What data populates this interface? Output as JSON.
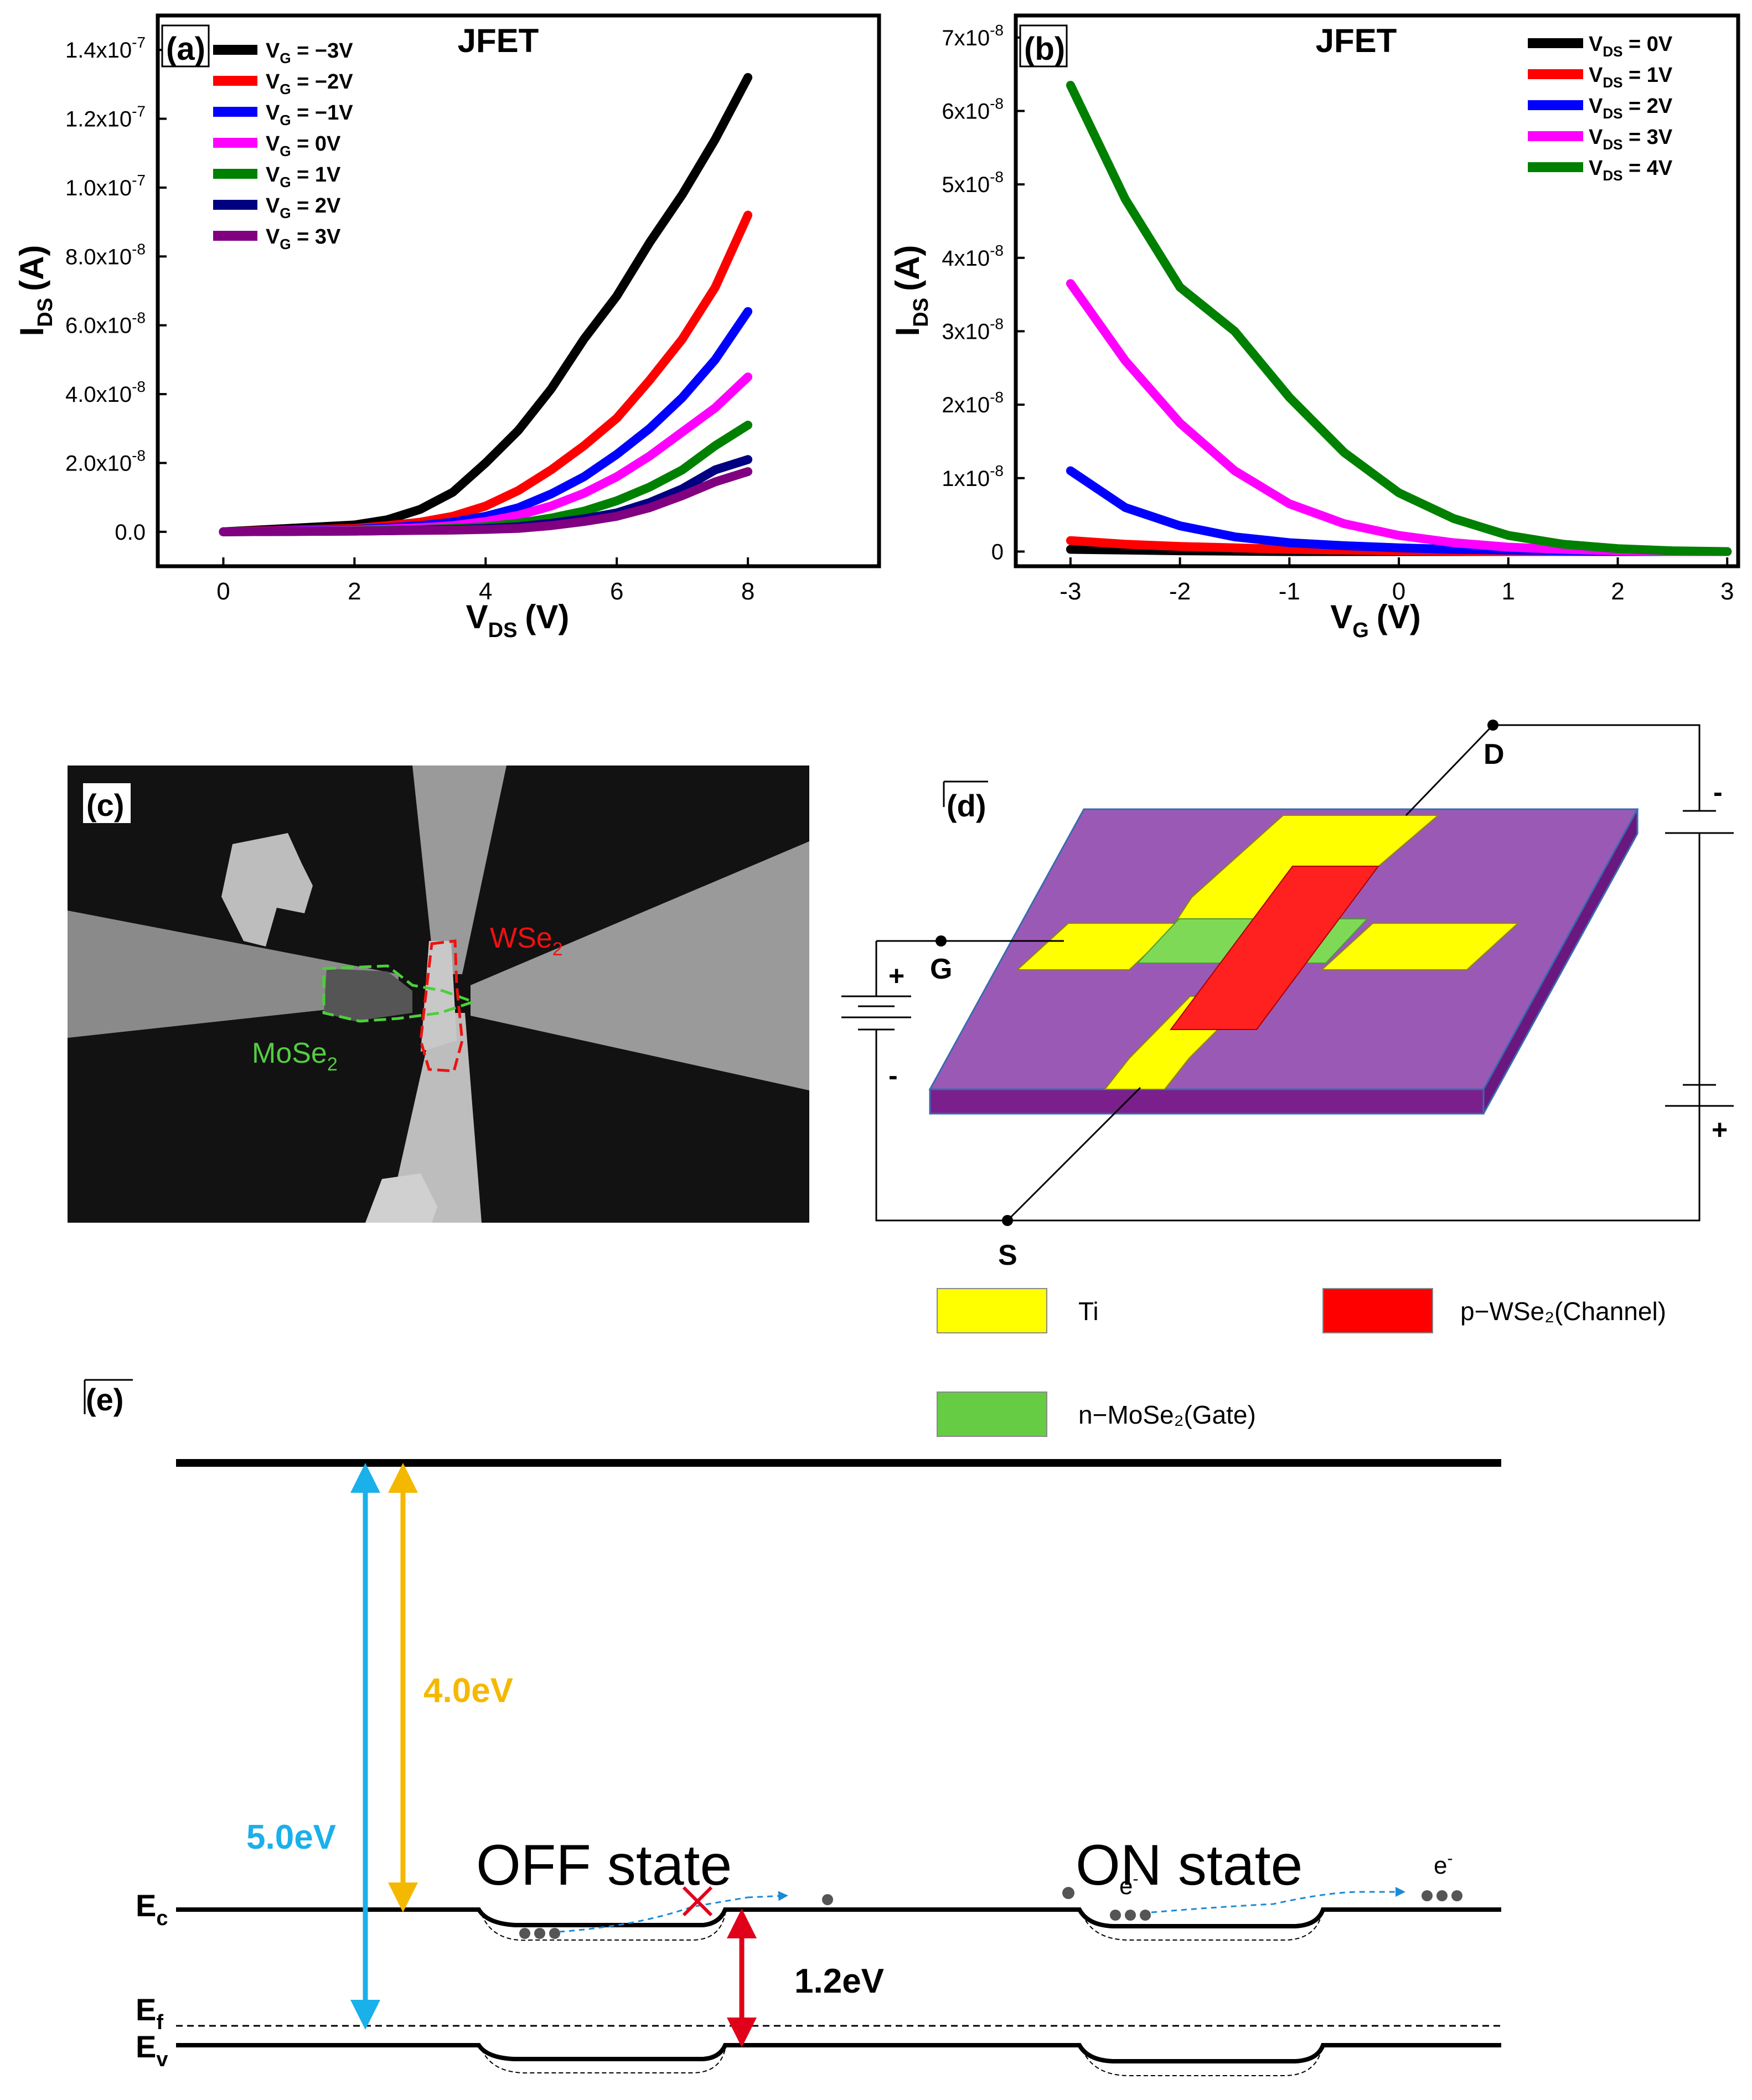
{
  "chart_data": [
    {
      "panel": "(a)",
      "type": "line",
      "title": "JFET",
      "xlabel_main": "V",
      "xlabel_sub": "DS",
      "xlabel_unit": "(V)",
      "ylabel_main": "I",
      "ylabel_sub": "DS",
      "ylabel_unit": "(A)",
      "xlim": [
        -1,
        10
      ],
      "ylim": [
        -1e-08,
        1.5e-07
      ],
      "x_ticks": [
        0,
        2,
        4,
        6,
        8
      ],
      "x_tick_labels": [
        "0",
        "2",
        "4",
        "6",
        "8"
      ],
      "y_ticks": [
        0,
        2e-08,
        4e-08,
        6e-08,
        8e-08,
        1e-07,
        1.2e-07,
        1.4e-07
      ],
      "y_tick_labels": [
        "0.0",
        "2.0x10",
        "4.0x10",
        "6.0x10",
        "8.0x10",
        "1.0x10",
        "1.2x10",
        "1.4x10"
      ],
      "y_tick_exps": [
        "",
        "-8",
        "-8",
        "-8",
        "-8",
        "-7",
        "-7",
        "-7"
      ],
      "legend_position": "top-left",
      "x": [
        0,
        1,
        2,
        2.5,
        3,
        3.5,
        4,
        4.5,
        5,
        5.5,
        6,
        6.5,
        7,
        7.5,
        8
      ],
      "series": [
        {
          "name_prefix": "V",
          "name_sub": "G",
          "name_value": " = −3V",
          "color": "#000000",
          "values": [
            0,
            1e-09,
            2e-09,
            3.5e-09,
            6.5e-09,
            1.15e-08,
            2e-08,
            2.95e-08,
            4.15e-08,
            5.6e-08,
            6.85e-08,
            8.4e-08,
            9.8e-08,
            1.14e-07,
            1.32e-07
          ]
        },
        {
          "name_prefix": "V",
          "name_sub": "G",
          "name_value": " = −2V",
          "color": "#ff0000",
          "values": [
            0,
            5e-10,
            1e-09,
            1.8e-09,
            2.8e-09,
            4.5e-09,
            7.5e-09,
            1.2e-08,
            1.8e-08,
            2.5e-08,
            3.3e-08,
            4.4e-08,
            5.6e-08,
            7.1e-08,
            9.2e-08
          ]
        },
        {
          "name_prefix": "V",
          "name_sub": "G",
          "name_value": " = −1V",
          "color": "#0000ff",
          "values": [
            0,
            3e-10,
            7e-10,
            1.2e-09,
            1.8e-09,
            2.8e-09,
            4.5e-09,
            7e-09,
            1.1e-08,
            1.6e-08,
            2.25e-08,
            3e-08,
            3.9e-08,
            5e-08,
            6.4e-08
          ]
        },
        {
          "name_prefix": "V",
          "name_sub": "G",
          "name_value": " =   0V",
          "color": "#ff00ff",
          "values": [
            0,
            2e-10,
            5e-10,
            8e-10,
            1.2e-09,
            1.8e-09,
            3e-09,
            4.8e-09,
            7.5e-09,
            1.12e-08,
            1.6e-08,
            2.2e-08,
            2.9e-08,
            3.6e-08,
            4.5e-08
          ]
        },
        {
          "name_prefix": "V",
          "name_sub": "G",
          "name_value": " =   1V",
          "color": "#008000",
          "values": [
            0,
            1e-10,
            3e-10,
            5e-10,
            7e-10,
            1e-09,
            1.5e-09,
            2.5e-09,
            4e-09,
            6e-09,
            9e-09,
            1.3e-08,
            1.8e-08,
            2.5e-08,
            3.1e-08
          ]
        },
        {
          "name_prefix": "V",
          "name_sub": "G",
          "name_value": " =   2V",
          "color": "#000080",
          "values": [
            0,
            1e-10,
            2e-10,
            3e-10,
            5e-10,
            7e-10,
            1e-09,
            1.5e-09,
            2.5e-09,
            3.8e-09,
            5.5e-09,
            8.5e-09,
            1.25e-08,
            1.8e-08,
            2.1e-08
          ]
        },
        {
          "name_prefix": "V",
          "name_sub": "G",
          "name_value": " =   3V",
          "color": "#800080",
          "values": [
            0,
            1e-10,
            2e-10,
            3e-10,
            4e-10,
            5e-10,
            7e-10,
            1e-09,
            1.8e-09,
            3e-09,
            4.5e-09,
            7e-09,
            1.05e-08,
            1.45e-08,
            1.75e-08
          ]
        }
      ]
    },
    {
      "panel": "(b)",
      "type": "line",
      "title": "JFET",
      "xlabel_main": "V",
      "xlabel_sub": "G",
      "xlabel_unit": "(V)",
      "ylabel_main": "I",
      "ylabel_sub": "DS",
      "ylabel_unit": "(A)",
      "xlim": [
        -3.5,
        3.1
      ],
      "ylim": [
        -2e-09,
        7.3e-08
      ],
      "x_ticks": [
        -3,
        -2,
        -1,
        0,
        1,
        2,
        3
      ],
      "x_tick_labels": [
        "-3",
        "-2",
        "-1",
        "0",
        "1",
        "2",
        "3"
      ],
      "y_ticks": [
        0,
        1e-08,
        2e-08,
        3e-08,
        4e-08,
        5e-08,
        6e-08,
        7e-08
      ],
      "y_tick_labels": [
        "0",
        "1x10",
        "2x10",
        "3x10",
        "4x10",
        "5x10",
        "6x10",
        "7x10"
      ],
      "y_tick_exps": [
        "",
        "-8",
        "-8",
        "-8",
        "-8",
        "-8",
        "-8",
        "-8"
      ],
      "legend_position": "top-right",
      "x": [
        -3,
        -2.5,
        -2,
        -1.5,
        -1,
        -0.5,
        0,
        0.5,
        1,
        1.5,
        2,
        2.5,
        3
      ],
      "series": [
        {
          "name_prefix": "V",
          "name_sub": "DS",
          "name_value": " =   0V",
          "color": "#000000",
          "values": [
            3e-10,
            2e-10,
            1e-10,
            5e-11,
            0,
            0,
            0,
            0,
            0,
            0,
            0,
            0,
            0
          ]
        },
        {
          "name_prefix": "V",
          "name_sub": "DS",
          "name_value": " =   1V",
          "color": "#ff0000",
          "values": [
            1.5e-09,
            1e-09,
            7e-10,
            5e-10,
            3e-10,
            2e-10,
            1e-10,
            5e-11,
            0,
            0,
            0,
            0,
            0
          ]
        },
        {
          "name_prefix": "V",
          "name_sub": "DS",
          "name_value": " =   2V",
          "color": "#0000ff",
          "values": [
            1.1e-08,
            6e-09,
            3.5e-09,
            2e-09,
            1.2e-09,
            8e-10,
            5e-10,
            3e-10,
            2e-10,
            1e-10,
            0,
            0,
            0
          ]
        },
        {
          "name_prefix": "V",
          "name_sub": "DS",
          "name_value": " =   3V",
          "color": "#ff00ff",
          "values": [
            3.65e-08,
            2.6e-08,
            1.75e-08,
            1.1e-08,
            6.5e-09,
            3.8e-09,
            2.2e-09,
            1.2e-09,
            6e-10,
            3e-10,
            1e-10,
            0,
            0
          ]
        },
        {
          "name_prefix": "V",
          "name_sub": "DS",
          "name_value": " =   4V",
          "color": "#008000",
          "values": [
            6.35e-08,
            4.8e-08,
            3.6e-08,
            3e-08,
            2.1e-08,
            1.35e-08,
            8e-09,
            4.5e-09,
            2.2e-09,
            1e-09,
            4e-10,
            1e-10,
            0
          ]
        }
      ]
    }
  ],
  "photo": {
    "label": "(c)",
    "wse2_main": "WSe",
    "wse2_sub": "2",
    "mose2_main": "MoSe",
    "mose2_sub": "2"
  },
  "schematic": {
    "label": "(d)",
    "terminal_d": "D",
    "terminal_g": "G",
    "terminal_s": "S",
    "plus": "+",
    "minus": "-",
    "legend_ti": "Ti",
    "legend_wse2": "p−WSe₂(Channel)",
    "legend_mose2": "n−MoSe₂(Gate)",
    "color_ti": "#ffff00",
    "color_wse2": "#ff0000",
    "color_mose2": "#66cc44",
    "color_substrate": "#9b59b6"
  },
  "band": {
    "label": "(e)",
    "gap_blue": "5.0eV",
    "gap_orange": "4.0eV",
    "gap_red": "1.2eV",
    "off_state": "OFF state",
    "on_state": "ON state",
    "ec_main": "E",
    "ec_sub": "c",
    "ef_main": "E",
    "ef_sub": "f",
    "ev_main": "E",
    "ev_sub": "v",
    "electron_main": "e",
    "electron_sup": "-",
    "color_blue": "#1ab0ea",
    "color_orange": "#f5b800",
    "color_red": "#e0001a"
  }
}
